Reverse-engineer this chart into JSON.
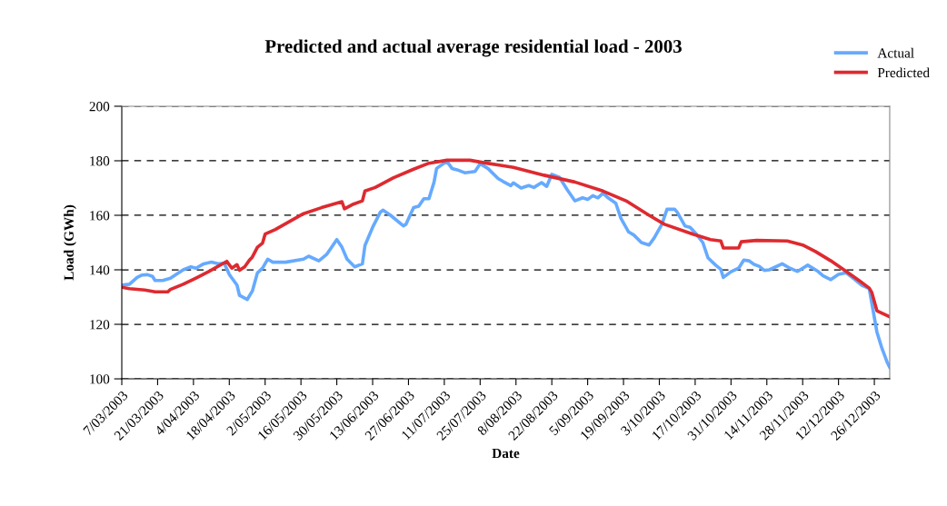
{
  "chart_data": {
    "type": "line",
    "title": "Predicted and actual average residential load - 2003",
    "xlabel": "Date",
    "ylabel": "Load (GWh)",
    "xlim": [
      "2003-03-07",
      "2004-01-01"
    ],
    "ylim": [
      100,
      200
    ],
    "yticks": [
      100,
      120,
      140,
      160,
      180,
      200
    ],
    "xticks": [
      {
        "value": "2003-03-07",
        "label": "7/03/2003"
      },
      {
        "value": "2003-03-21",
        "label": "21/03/2003"
      },
      {
        "value": "2003-04-04",
        "label": "4/04/2003"
      },
      {
        "value": "2003-04-18",
        "label": "18/04/2003"
      },
      {
        "value": "2003-05-02",
        "label": "2/05/2003"
      },
      {
        "value": "2003-05-16",
        "label": "16/05/2003"
      },
      {
        "value": "2003-05-30",
        "label": "30/05/2003"
      },
      {
        "value": "2003-06-13",
        "label": "13/06/2003"
      },
      {
        "value": "2003-06-27",
        "label": "27/06/2003"
      },
      {
        "value": "2003-07-11",
        "label": "11/07/2003"
      },
      {
        "value": "2003-07-25",
        "label": "25/07/2003"
      },
      {
        "value": "2003-08-08",
        "label": "8/08/2003"
      },
      {
        "value": "2003-08-22",
        "label": "22/08/2003"
      },
      {
        "value": "2003-09-05",
        "label": "5/09/2003"
      },
      {
        "value": "2003-09-19",
        "label": "19/09/2003"
      },
      {
        "value": "2003-10-03",
        "label": "3/10/2003"
      },
      {
        "value": "2003-10-17",
        "label": "17/10/2003"
      },
      {
        "value": "2003-10-31",
        "label": "31/10/2003"
      },
      {
        "value": "2003-11-14",
        "label": "14/11/2003"
      },
      {
        "value": "2003-11-28",
        "label": "28/11/2003"
      },
      {
        "value": "2003-12-12",
        "label": "12/12/2003"
      },
      {
        "value": "2003-12-26",
        "label": "26/12/2003"
      }
    ],
    "grid": "y",
    "legend": "top right",
    "marker": "none",
    "line_style": "solid",
    "series": [
      {
        "name": "Actual",
        "color": "#66aaff",
        "x": [
          "2003-03-07",
          "2003-03-10",
          "2003-03-13",
          "2003-03-15",
          "2003-03-17",
          "2003-03-19",
          "2003-03-20",
          "2003-03-23",
          "2003-03-26",
          "2003-03-31",
          "2003-04-03",
          "2003-04-05",
          "2003-04-08",
          "2003-04-11",
          "2003-04-14",
          "2003-04-16",
          "2003-04-18",
          "2003-04-21",
          "2003-04-22",
          "2003-04-25",
          "2003-04-27",
          "2003-04-29",
          "2003-05-01",
          "2003-05-03",
          "2003-05-05",
          "2003-05-10",
          "2003-05-17",
          "2003-05-19",
          "2003-05-23",
          "2003-05-26",
          "2003-05-30",
          "2003-06-01",
          "2003-06-03",
          "2003-06-06",
          "2003-06-09",
          "2003-06-10",
          "2003-06-13",
          "2003-06-16",
          "2003-06-17",
          "2003-06-20",
          "2003-06-25",
          "2003-06-26",
          "2003-06-29",
          "2003-07-01",
          "2003-07-03",
          "2003-07-05",
          "2003-07-07",
          "2003-07-08",
          "2003-07-12",
          "2003-07-14",
          "2003-07-16",
          "2003-07-19",
          "2003-07-23",
          "2003-07-25",
          "2003-07-28",
          "2003-08-01",
          "2003-08-03",
          "2003-08-06",
          "2003-08-07",
          "2003-08-10",
          "2003-08-13",
          "2003-08-15",
          "2003-08-18",
          "2003-08-20",
          "2003-08-22",
          "2003-08-25",
          "2003-08-28",
          "2003-08-31",
          "2003-09-03",
          "2003-09-05",
          "2003-09-07",
          "2003-09-09",
          "2003-09-11",
          "2003-09-13",
          "2003-09-16",
          "2003-09-18",
          "2003-09-21",
          "2003-09-23",
          "2003-09-26",
          "2003-09-29",
          "2003-10-01",
          "2003-10-04",
          "2003-10-06",
          "2003-10-09",
          "2003-10-10",
          "2003-10-13",
          "2003-10-15",
          "2003-10-17",
          "2003-10-20",
          "2003-10-22",
          "2003-10-25",
          "2003-10-27",
          "2003-10-28",
          "2003-10-31",
          "2003-11-03",
          "2003-11-05",
          "2003-11-07",
          "2003-11-09",
          "2003-11-11",
          "2003-11-13",
          "2003-11-15",
          "2003-11-20",
          "2003-11-23",
          "2003-11-26",
          "2003-11-30",
          "2003-12-04",
          "2003-12-06",
          "2003-12-09",
          "2003-12-12",
          "2003-12-15",
          "2003-12-18",
          "2003-12-21",
          "2003-12-24",
          "2003-12-25",
          "2003-12-27",
          "2003-12-29",
          "2003-12-31",
          "2004-01-01"
        ],
        "values": [
          134.4,
          134.7,
          137.2,
          138.1,
          138.2,
          137.6,
          136.1,
          136.1,
          136.9,
          140,
          141.1,
          140.6,
          142.2,
          142.8,
          142.2,
          142.4,
          138.3,
          134.4,
          130.6,
          129.1,
          132.2,
          138.9,
          140.6,
          143.9,
          142.8,
          142.8,
          143.9,
          145,
          143.3,
          145.6,
          151.1,
          148.3,
          143.9,
          141.1,
          142.2,
          148.9,
          155.6,
          161.1,
          161.9,
          160,
          156.1,
          156.7,
          162.8,
          163.3,
          166.1,
          166.1,
          172.2,
          177.2,
          179.8,
          177.2,
          176.7,
          175.6,
          176.1,
          178.9,
          177.2,
          173.5,
          172.4,
          170.9,
          171.9,
          170,
          170.9,
          170.2,
          172,
          170.6,
          175,
          173.9,
          169.4,
          165.3,
          166.4,
          165.8,
          167.2,
          166.4,
          168.1,
          166.4,
          164.4,
          158.9,
          153.9,
          152.8,
          150,
          149.1,
          151.7,
          156.7,
          162.2,
          162.2,
          161.1,
          156.1,
          155.6,
          153.6,
          150,
          144.4,
          141.7,
          140.2,
          137.2,
          139.3,
          140.6,
          143.6,
          143.3,
          142,
          141.3,
          139.8,
          140,
          142.2,
          140.6,
          139.4,
          141.7,
          139.4,
          137.8,
          136.4,
          138.3,
          138.9,
          136.7,
          134.4,
          133.1,
          127.8,
          117.2,
          111.1,
          106.1,
          104.2
        ]
      },
      {
        "name": "Predicted",
        "color": "#dd2a30",
        "x": [
          "2003-03-07",
          "2003-03-10",
          "2003-03-16",
          "2003-03-20",
          "2003-03-25",
          "2003-03-26",
          "2003-03-31",
          "2003-04-05",
          "2003-04-10",
          "2003-04-17",
          "2003-04-19",
          "2003-04-21",
          "2003-04-22",
          "2003-04-24",
          "2003-04-26",
          "2003-04-27",
          "2003-04-29",
          "2003-05-01",
          "2003-05-02",
          "2003-05-06",
          "2003-05-17",
          "2003-05-24",
          "2003-06-01",
          "2003-06-02",
          "2003-06-05",
          "2003-06-09",
          "2003-06-10",
          "2003-06-14",
          "2003-06-21",
          "2003-06-29",
          "2003-07-05",
          "2003-07-12",
          "2003-07-21",
          "2003-07-27",
          "2003-08-02",
          "2003-08-07",
          "2003-08-19",
          "2003-08-31",
          "2003-09-11",
          "2003-09-20",
          "2003-09-29",
          "2003-10-05",
          "2003-10-17",
          "2003-10-23",
          "2003-10-27",
          "2003-10-28",
          "2003-11-03",
          "2003-11-04",
          "2003-11-10",
          "2003-11-22",
          "2003-11-28",
          "2003-12-03",
          "2003-12-09",
          "2003-12-15",
          "2003-12-20",
          "2003-12-24",
          "2003-12-25",
          "2003-12-27",
          "2004-01-01"
        ],
        "values": [
          133.6,
          133.1,
          132.6,
          131.9,
          131.9,
          132.8,
          134.7,
          137,
          139.4,
          143.1,
          140.6,
          141.9,
          139.8,
          141.1,
          143.7,
          144.7,
          148.3,
          149.8,
          153.1,
          154.8,
          160.6,
          162.8,
          165,
          162.4,
          163.9,
          165.3,
          168.9,
          170.2,
          173.7,
          176.9,
          179.1,
          180.2,
          180.2,
          179.2,
          178.3,
          177.6,
          174.7,
          172.2,
          168.9,
          165.3,
          160,
          156.7,
          152.8,
          151.1,
          150.6,
          148,
          148,
          150.3,
          150.8,
          150.6,
          149.1,
          146.7,
          143.3,
          139.4,
          136.1,
          133.3,
          131.7,
          125,
          122.8
        ]
      }
    ]
  }
}
